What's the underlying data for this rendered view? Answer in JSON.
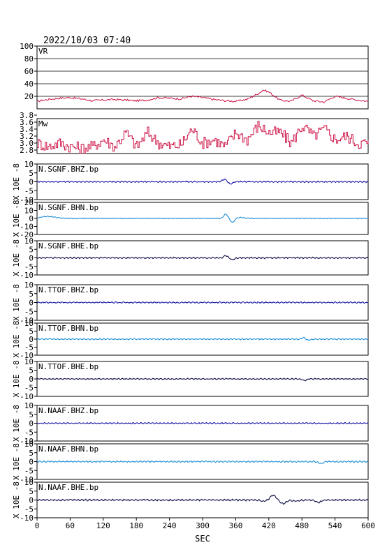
{
  "header": {
    "datetime": "2022/10/03 07:40"
  },
  "chart_data": {
    "type": "line",
    "xlabel": "SEC",
    "xlim": [
      0,
      600
    ],
    "x_ticks": [
      0,
      60,
      120,
      180,
      240,
      300,
      360,
      420,
      480,
      540,
      600
    ],
    "colors": {
      "vr_mw": "#cc1144",
      "bhz": "#1a1aa8",
      "bhn": "#1e8fd6",
      "bhe": "#10104a",
      "frame": "#000000"
    },
    "panels": [
      {
        "label": "VR",
        "kind": "vr",
        "ylim": [
          0,
          100
        ],
        "yticks": [
          20,
          40,
          60,
          80,
          100
        ],
        "grid": true,
        "x": [
          0,
          20,
          40,
          60,
          80,
          100,
          120,
          140,
          160,
          180,
          200,
          220,
          240,
          260,
          280,
          300,
          320,
          340,
          360,
          380,
          400,
          410,
          420,
          440,
          460,
          480,
          500,
          520,
          540,
          560,
          580,
          600
        ],
        "y": [
          12,
          15,
          17,
          18,
          16,
          13,
          14,
          15,
          14,
          13,
          14,
          18,
          17,
          16,
          20,
          18,
          15,
          13,
          12,
          15,
          24,
          30,
          27,
          14,
          12,
          22,
          13,
          11,
          20,
          17,
          14,
          12
        ]
      },
      {
        "label": "Mw",
        "kind": "mw",
        "ylim": [
          2.7,
          3.7
        ],
        "yticks": [
          2.8,
          3.0,
          3.2,
          3.4,
          3.6,
          3.8
        ],
        "x": [
          0,
          20,
          40,
          60,
          80,
          100,
          120,
          140,
          160,
          180,
          200,
          220,
          240,
          260,
          280,
          300,
          320,
          340,
          360,
          380,
          400,
          420,
          440,
          460,
          480,
          500,
          520,
          540,
          560,
          580,
          600
        ],
        "y": [
          3.0,
          2.9,
          3.0,
          2.9,
          2.85,
          2.9,
          3.1,
          2.9,
          3.3,
          2.9,
          3.3,
          3.0,
          2.9,
          2.95,
          3.4,
          3.0,
          3.1,
          2.9,
          3.3,
          3.1,
          3.5,
          3.3,
          3.3,
          3.0,
          3.5,
          3.2,
          3.4,
          3.1,
          3.2,
          3.0,
          3.0
        ]
      },
      {
        "label": "N.SGNF.BHZ.bp",
        "kind": "wave",
        "comp": "bhz",
        "unit": "X 10E -8",
        "ylim": [
          -10,
          10
        ],
        "yticks": [
          -10,
          -5,
          0,
          5,
          10
        ],
        "pulses": [
          {
            "t": 340,
            "a": 1.5,
            "w": 6
          },
          {
            "t": 350,
            "a": -1.3,
            "w": 6
          }
        ],
        "noise": 0.4
      },
      {
        "label": "N.SGNF.BHN.bp",
        "kind": "wave",
        "comp": "bhn",
        "unit": "X 10E -8",
        "ylim": [
          -20,
          20
        ],
        "yticks": [
          -20,
          -10,
          0,
          10,
          20
        ],
        "pulses": [
          {
            "t": 20,
            "a": 2.5,
            "w": 18
          },
          {
            "t": 342,
            "a": 5.5,
            "w": 5
          },
          {
            "t": 354,
            "a": -5,
            "w": 5
          },
          {
            "t": 370,
            "a": 1.2,
            "w": 10
          }
        ],
        "noise": 0.6
      },
      {
        "label": "N.SGNF.BHE.bp",
        "kind": "wave",
        "comp": "bhe",
        "unit": "X 10E -8",
        "ylim": [
          -10,
          10
        ],
        "yticks": [
          -10,
          -5,
          0,
          5,
          10
        ],
        "pulses": [
          {
            "t": 342,
            "a": 1.3,
            "w": 5
          },
          {
            "t": 354,
            "a": -1.1,
            "w": 5
          }
        ],
        "noise": 0.45
      },
      {
        "label": "N.TTOF.BHZ.bp",
        "kind": "wave",
        "comp": "bhz",
        "unit": "X 10E -8",
        "ylim": [
          -10,
          10
        ],
        "yticks": [
          -10,
          -5,
          0,
          5,
          10
        ],
        "pulses": [],
        "noise": 0.4
      },
      {
        "label": "N.TTOF.BHN.bp",
        "kind": "wave",
        "comp": "bhn",
        "unit": "X 10E -8",
        "ylim": [
          -10,
          10
        ],
        "yticks": [
          -10,
          -5,
          0,
          5,
          10
        ],
        "pulses": [
          {
            "t": 483,
            "a": 0.9,
            "w": 5
          },
          {
            "t": 492,
            "a": -0.7,
            "w": 5
          }
        ],
        "noise": 0.4
      },
      {
        "label": "N.TTOF.BHE.bp",
        "kind": "wave",
        "comp": "bhe",
        "unit": "X 10E -8",
        "ylim": [
          -10,
          10
        ],
        "yticks": [
          -10,
          -5,
          0,
          5,
          10
        ],
        "pulses": [
          {
            "t": 485,
            "a": -0.9,
            "w": 5
          }
        ],
        "noise": 0.35
      },
      {
        "label": "N.NAAF.BHZ.bp",
        "kind": "wave",
        "comp": "bhz",
        "unit": "X 10E -8",
        "ylim": [
          -10,
          10
        ],
        "yticks": [
          -10,
          -5,
          0,
          5,
          10
        ],
        "pulses": [],
        "noise": 0.4
      },
      {
        "label": "N.NAAF.BHN.bp",
        "kind": "wave",
        "comp": "bhn",
        "unit": "X 10E -8",
        "ylim": [
          -10,
          10
        ],
        "yticks": [
          -10,
          -5,
          0,
          5,
          10
        ],
        "pulses": [
          {
            "t": 514,
            "a": -1.0,
            "w": 6
          }
        ],
        "noise": 0.45
      },
      {
        "label": "N.NAAF.BHE.bp",
        "kind": "wave",
        "comp": "bhe",
        "unit": "X 10E -8",
        "ylim": [
          -10,
          10
        ],
        "yticks": [
          -10,
          -5,
          0,
          5,
          10
        ],
        "pulses": [
          {
            "t": 410,
            "a": -0.8,
            "w": 6
          },
          {
            "t": 428,
            "a": 2.8,
            "w": 7
          },
          {
            "t": 446,
            "a": -2.0,
            "w": 8
          },
          {
            "t": 470,
            "a": -0.6,
            "w": 8
          },
          {
            "t": 510,
            "a": -1.4,
            "w": 7
          }
        ],
        "noise": 0.5
      }
    ]
  }
}
